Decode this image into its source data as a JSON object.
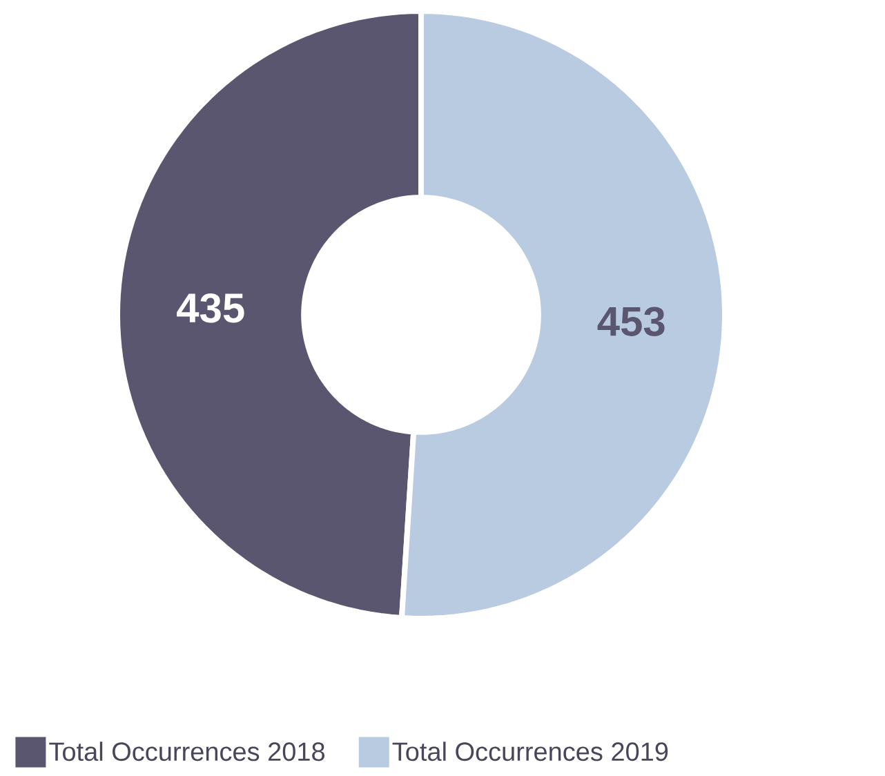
{
  "chart_data": {
    "type": "donut",
    "categories": [
      "Total Occurrences 2018",
      "Total Occurrences 2019"
    ],
    "values": [
      435,
      453
    ],
    "colors": [
      "#5b5670",
      "#b9cbe0"
    ],
    "data_labels": true,
    "legend": "bottom"
  }
}
